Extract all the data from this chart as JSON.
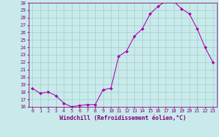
{
  "x": [
    0,
    1,
    2,
    3,
    4,
    5,
    6,
    7,
    8,
    9,
    10,
    11,
    12,
    13,
    14,
    15,
    16,
    17,
    18,
    19,
    20,
    21,
    22,
    23
  ],
  "y": [
    18.5,
    17.8,
    18.0,
    17.5,
    16.5,
    16.0,
    16.2,
    16.3,
    16.3,
    18.3,
    18.5,
    22.8,
    23.5,
    25.5,
    26.5,
    28.5,
    29.5,
    30.2,
    30.2,
    29.2,
    28.5,
    26.5,
    24.0,
    22.0
  ],
  "line_color": "#aa00aa",
  "marker": "D",
  "marker_size": 2,
  "bg_color": "#c8eaea",
  "grid_color": "#a8cece",
  "xlabel": "Windchill (Refroidissement éolien,°C)",
  "ylim": [
    16,
    30
  ],
  "xlim": [
    -0.5,
    23.5
  ],
  "yticks": [
    16,
    17,
    18,
    19,
    20,
    21,
    22,
    23,
    24,
    25,
    26,
    27,
    28,
    29,
    30
  ],
  "xticks": [
    0,
    1,
    2,
    3,
    4,
    5,
    6,
    7,
    8,
    9,
    10,
    11,
    12,
    13,
    14,
    15,
    16,
    17,
    18,
    19,
    20,
    21,
    22,
    23
  ],
  "axis_color": "#800080",
  "tick_color": "#800080",
  "label_fontsize": 6.0,
  "tick_fontsize": 5.0
}
